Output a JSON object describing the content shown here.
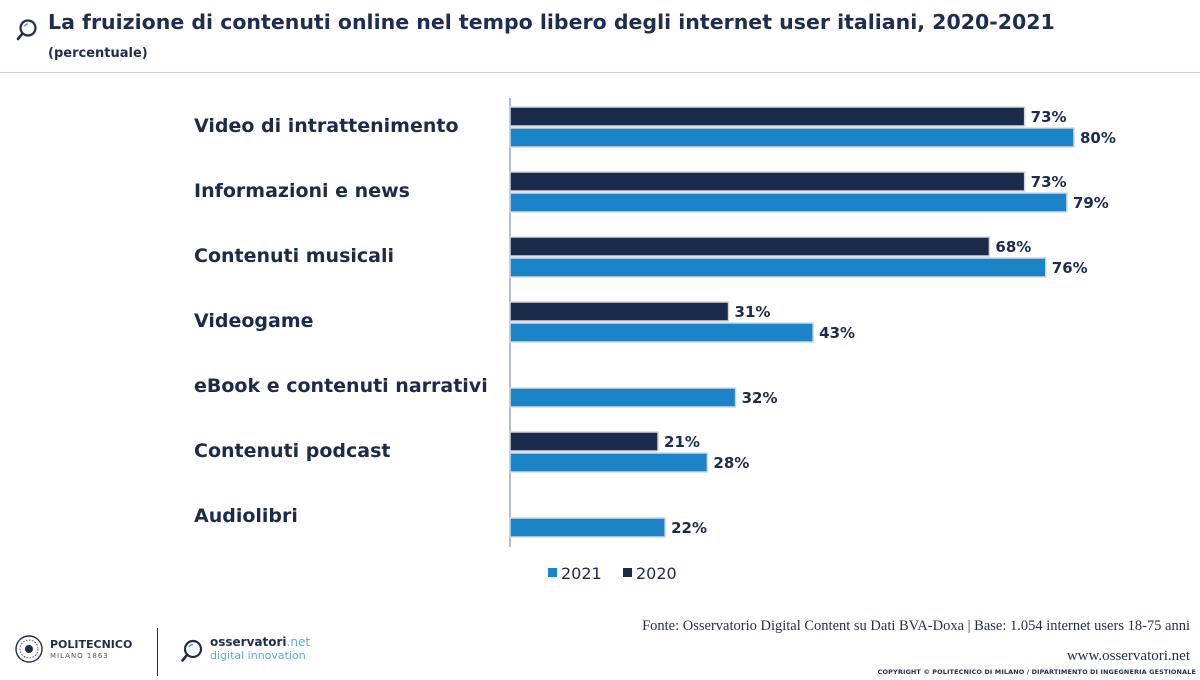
{
  "header": {
    "title": "La fruizione di contenuti online nel tempo libero degli internet user italiani, 2020-2021",
    "subtitle": "(percentuale)",
    "icon": "search-icon"
  },
  "chart_data": {
    "type": "bar",
    "orientation": "horizontal",
    "categories": [
      "Video di intrattenimento",
      "Informazioni e news",
      "Contenuti musicali",
      "Videogame",
      "eBook e contenuti narrativi",
      "Contenuti podcast",
      "Audiolibri"
    ],
    "series": [
      {
        "name": "2020",
        "color": "#1a2b4c",
        "values": [
          73,
          73,
          68,
          31,
          null,
          21,
          null
        ]
      },
      {
        "name": "2021",
        "color": "#1b84c9",
        "values": [
          80,
          79,
          76,
          43,
          32,
          28,
          22
        ]
      }
    ],
    "value_suffix": "%",
    "legend": [
      "2021",
      "2020"
    ],
    "legend_position": "bottom",
    "xlim": [
      0,
      100
    ],
    "grid": false,
    "title": "La fruizione di contenuti online nel tempo libero degli internet user italiani, 2020-2021",
    "xlabel": "",
    "ylabel": ""
  },
  "footer": {
    "source": "Fonte: Osservatorio Digital Content su Dati BVA-Doxa | Base: 1.054 internet users 18-75 anni",
    "website": "www.osservatori.net",
    "copyright": "COPYRIGHT © POLITECNICO DI MILANO / DIPARTIMENTO DI INGEGNERIA GESTIONALE"
  },
  "logos": {
    "polimi_name": "POLITECNICO",
    "polimi_sub": "MILANO 1863",
    "oss_brand": "osservatori",
    "oss_suffix": ".net",
    "oss_tagline": "digital innovation"
  }
}
